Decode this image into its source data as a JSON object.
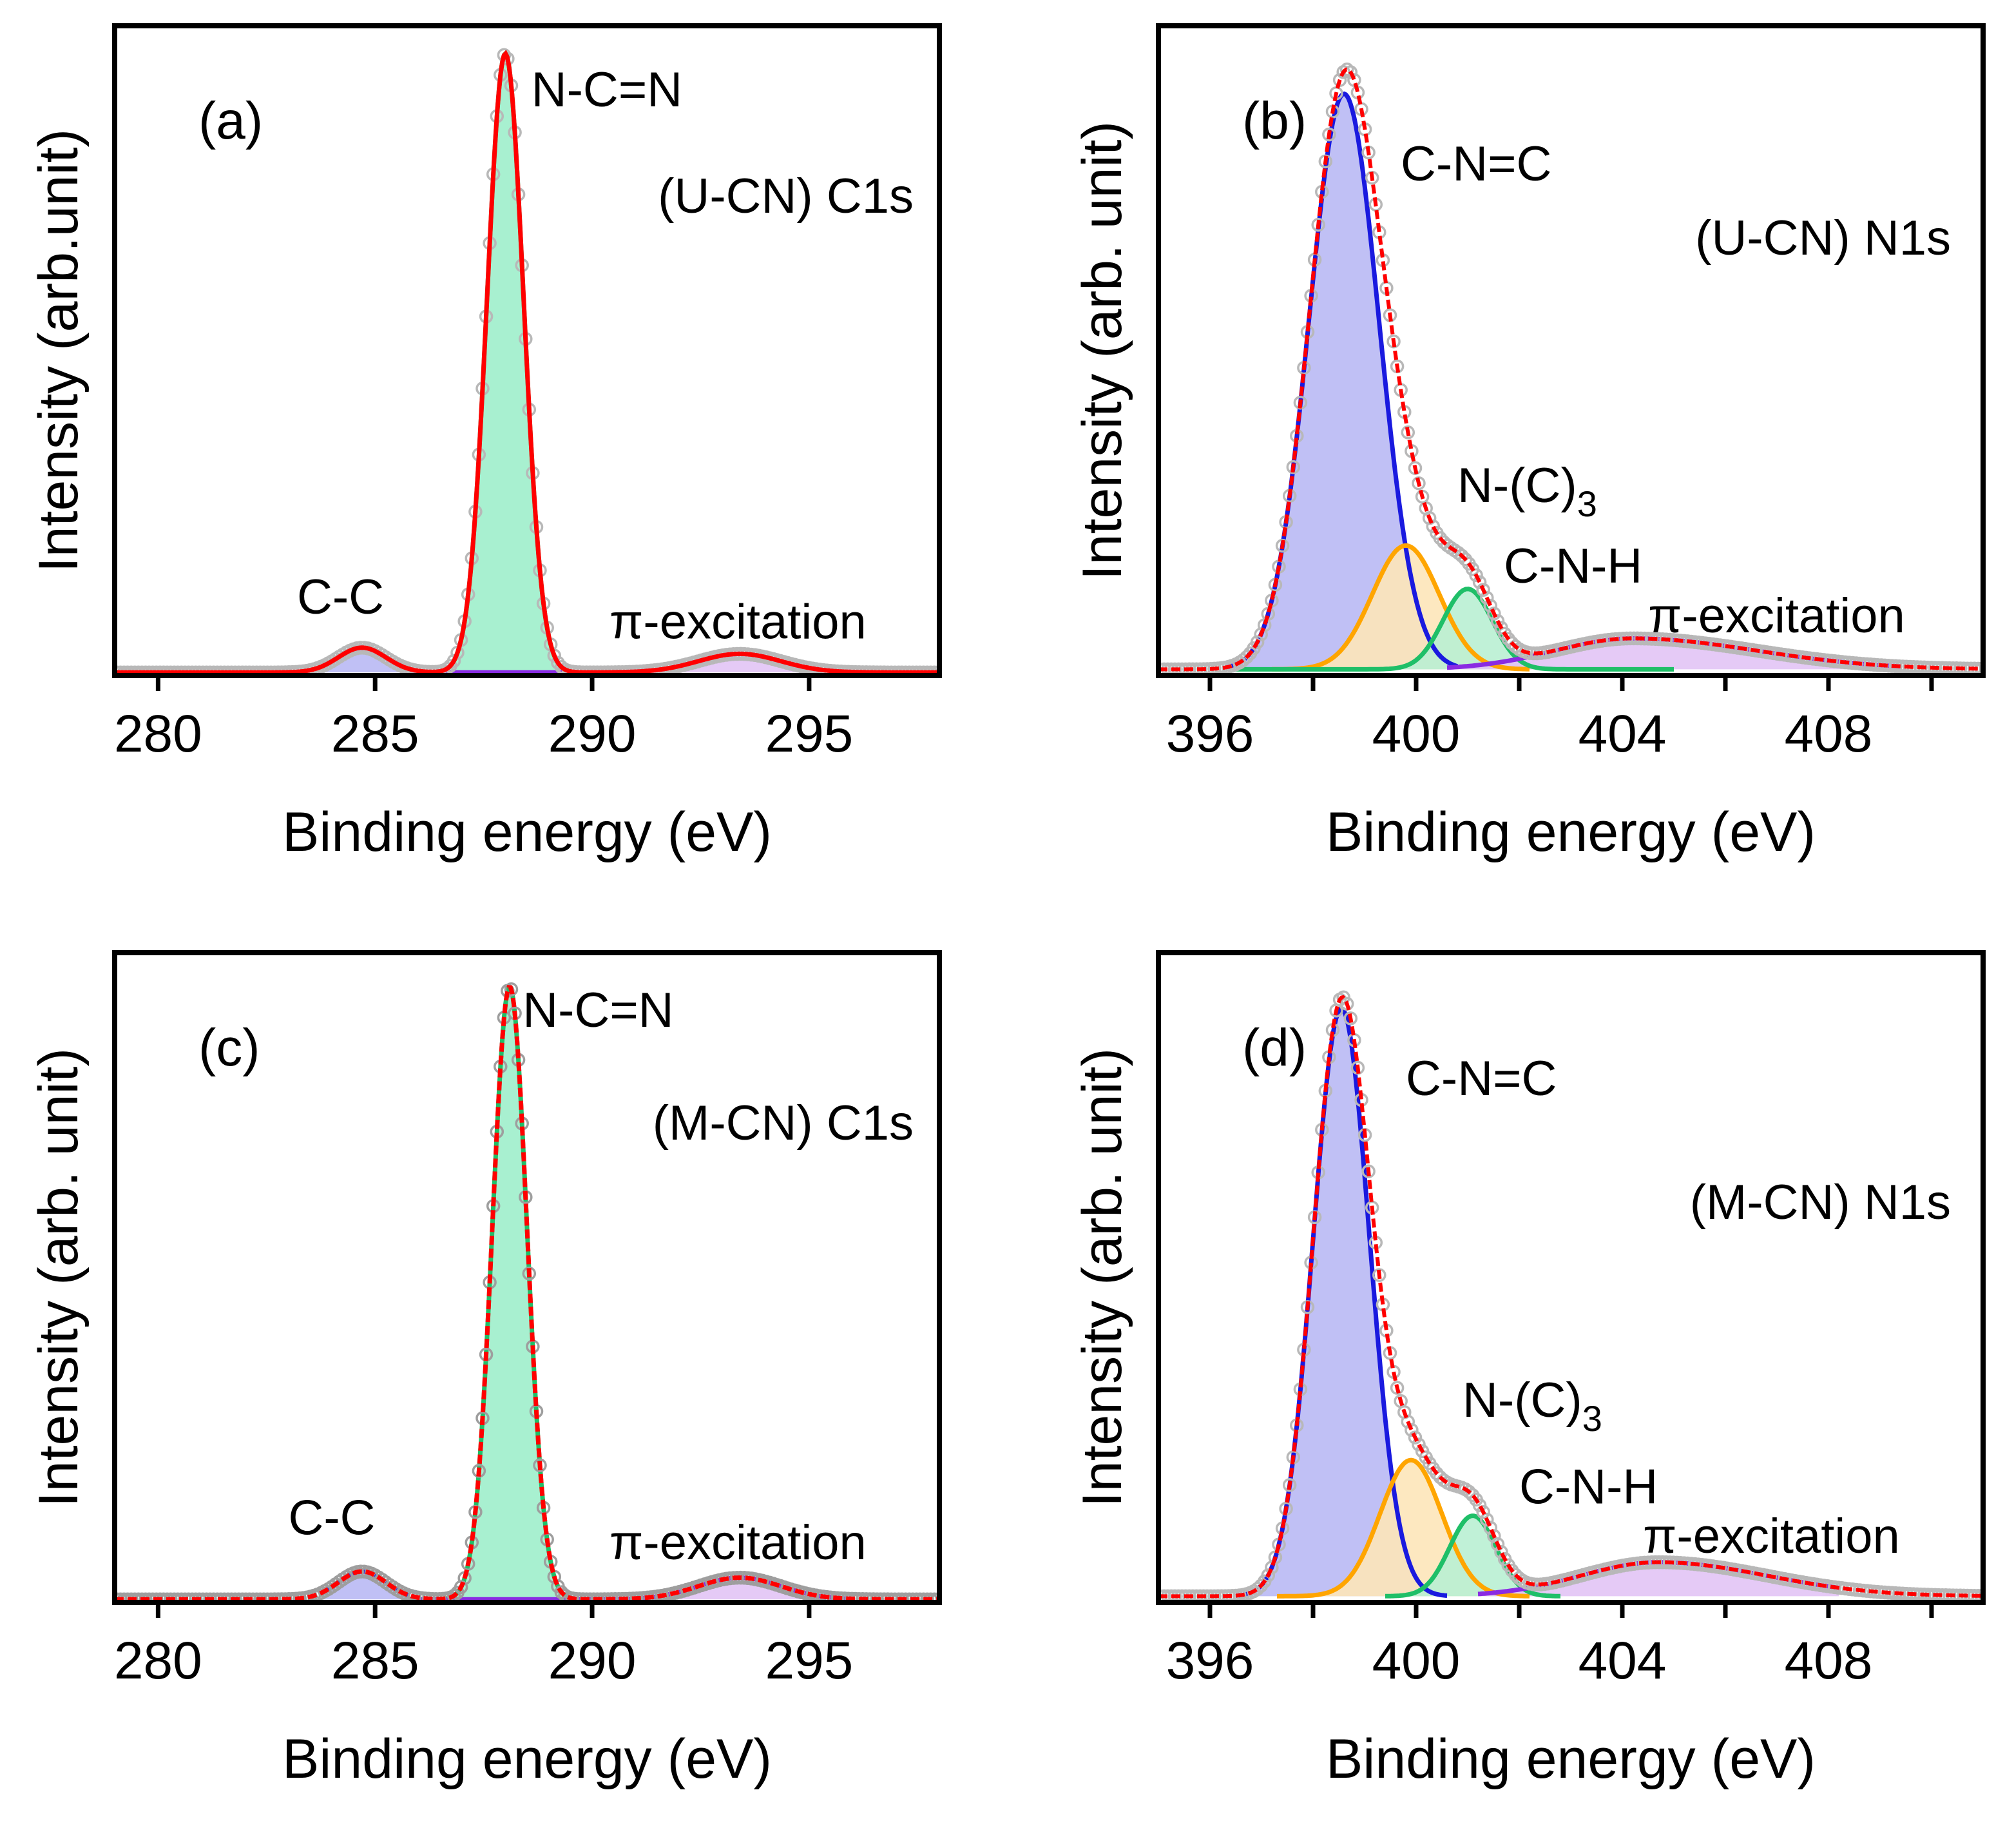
{
  "chart_data": [
    {
      "type": "line",
      "panel_label": "(a)",
      "title": "(U-CN) C1s",
      "xlabel": "Binding energy (eV)",
      "ylabel": "Intensity (arb.unit)",
      "xlim": [
        279,
        298
      ],
      "ylim": [
        0,
        1.05
      ],
      "xticks": [
        280,
        285,
        290,
        295
      ],
      "xtick_labels": [
        "280",
        "285",
        "290",
        "295"
      ],
      "background": 0.005,
      "envelope_color": "#ff0000",
      "points_color": "#b8b8b8",
      "components": [
        {
          "name": "C-C",
          "center": 284.7,
          "height": 0.04,
          "sigma": 0.55,
          "sigma_right": 0.55,
          "color": "#3b3bd6",
          "fill": "#b9b9f4",
          "range": [
            283.8,
            285.8
          ]
        },
        {
          "name": "N-C=N",
          "center": 288.0,
          "height": 1.0,
          "sigma": 0.42,
          "sigma_right": 0.42,
          "color": "#1fbf68",
          "fill": "#9eeecb",
          "range": [
            285.8,
            290.5
          ]
        },
        {
          "name": "π-excitation",
          "center": 293.4,
          "height": 0.03,
          "sigma": 0.95,
          "sigma_right": 0.95,
          "color": "#8a2be2",
          "fill": "#e2c4f5",
          "range": [
            285.8,
            296.0
          ]
        }
      ],
      "annotations": [
        {
          "text": "N-C=N",
          "x": 288.6,
          "y": 0.92
        },
        {
          "text": "C-C",
          "x": 283.2,
          "y": 0.1
        },
        {
          "text": "π-excitation",
          "x": 290.4,
          "y": 0.06
        }
      ]
    },
    {
      "type": "line",
      "panel_label": "(b)",
      "title": "(U-CN) N1s",
      "xlabel": "Binding energy (eV)",
      "ylabel": "Intensity (arb. unit)",
      "xlim": [
        395,
        411
      ],
      "ylim": [
        0,
        1.05
      ],
      "xticks": [
        396,
        400,
        404,
        408
      ],
      "xtick_labels": [
        "396",
        "400",
        "404",
        "408"
      ],
      "minor_xticks": [
        398,
        402,
        406,
        410
      ],
      "background": 0.01,
      "envelope_color": "#ff0000",
      "points_color": "#b8b8b8",
      "components": [
        {
          "name": "C-N=C",
          "center": 398.6,
          "height": 0.93,
          "sigma": 0.68,
          "sigma_right": 0.68,
          "color": "#1a1adf",
          "fill": "#b9b9f4",
          "range": [
            396.3,
            400.8
          ]
        },
        {
          "name": "N-(C)3",
          "center": 399.8,
          "height": 0.2,
          "sigma": 0.65,
          "sigma_right": 0.65,
          "color": "#ffa500",
          "fill": "#fde5b9",
          "range": [
            397.2,
            402.2
          ]
        },
        {
          "name": "C-N-H",
          "center": 401.0,
          "height": 0.13,
          "sigma": 0.48,
          "sigma_right": 0.48,
          "color": "#1fbf68",
          "fill": "#b9efd3",
          "range": [
            396.5,
            405.0
          ]
        },
        {
          "name": "π-excitation",
          "center": 404.2,
          "height": 0.05,
          "sigma": 1.5,
          "sigma_right": 2.4,
          "color": "#8a2be2",
          "fill": "#e2c4f5",
          "range": [
            400.6,
            409.4
          ]
        }
      ],
      "annotations": [
        {
          "text": "C-N=C",
          "x": 399.7,
          "y": 0.8
        },
        {
          "text": "N-(C)",
          "sub": "3",
          "x": 400.8,
          "y": 0.28
        },
        {
          "text": "C-N-H",
          "x": 401.7,
          "y": 0.15
        },
        {
          "text": "π-excitation",
          "x": 404.5,
          "y": 0.07
        }
      ],
      "inner_text_y": 0.68
    },
    {
      "type": "line",
      "panel_label": "(c)",
      "title": "(M-CN) C1s",
      "xlabel": "Binding energy (eV)",
      "ylabel": "Intensity (arb. unit)",
      "xlim": [
        279,
        298
      ],
      "ylim": [
        0,
        1.05
      ],
      "xticks": [
        280,
        285,
        290,
        295
      ],
      "xtick_labels": [
        "280",
        "285",
        "290",
        "295"
      ],
      "background": 0.005,
      "envelope_color": "#ff0000",
      "points_color": "#9e9e9e",
      "components": [
        {
          "name": "C-C",
          "center": 284.7,
          "height": 0.045,
          "sigma": 0.55,
          "sigma_right": 0.55,
          "color": "#3b3bd6",
          "fill": "#b9b9f4",
          "range": [
            283.8,
            285.8
          ]
        },
        {
          "name": "N-C=N",
          "center": 288.1,
          "height": 0.99,
          "sigma": 0.4,
          "sigma_right": 0.4,
          "color": "#1fbf68",
          "fill": "#9eeecb",
          "range": [
            285.8,
            290.5
          ]
        },
        {
          "name": "π-excitation",
          "center": 293.4,
          "height": 0.035,
          "sigma": 0.95,
          "sigma_right": 0.95,
          "color": "#8a2be2",
          "fill": "#e2c4f5",
          "range": [
            286.0,
            296.0
          ]
        }
      ],
      "annotations": [
        {
          "text": "N-C=N",
          "x": 288.4,
          "y": 0.93
        },
        {
          "text": "C-C",
          "x": 283.0,
          "y": 0.11
        },
        {
          "text": "π-excitation",
          "x": 290.4,
          "y": 0.07
        }
      ]
    },
    {
      "type": "line",
      "panel_label": "(d)",
      "title": "(M-CN) N1s",
      "xlabel": "Binding energy (eV)",
      "ylabel": "Intensity (arb. unit)",
      "xlim": [
        395,
        411
      ],
      "ylim": [
        0,
        1.05
      ],
      "xticks": [
        396,
        400,
        404,
        408
      ],
      "xtick_labels": [
        "396",
        "400",
        "404",
        "408"
      ],
      "minor_xticks": [
        398,
        402,
        406,
        410
      ],
      "background": 0.01,
      "envelope_color": "#ff0000",
      "points_color": "#b8b8b8",
      "components": [
        {
          "name": "C-N=C",
          "center": 398.55,
          "height": 0.95,
          "sigma": 0.55,
          "sigma_right": 0.55,
          "color": "#1a1adf",
          "fill": "#b9b9f4",
          "range": [
            396.5,
            400.6
          ]
        },
        {
          "name": "N-(C)3",
          "center": 399.9,
          "height": 0.22,
          "sigma": 0.6,
          "sigma_right": 0.6,
          "color": "#ffa500",
          "fill": "#fde5b9",
          "range": [
            397.3,
            402.2
          ]
        },
        {
          "name": "C-N-H",
          "center": 401.1,
          "height": 0.13,
          "sigma": 0.45,
          "sigma_right": 0.45,
          "color": "#1fbf68",
          "fill": "#b9efd3",
          "range": [
            399.4,
            402.8
          ]
        },
        {
          "name": "π-excitation",
          "center": 404.7,
          "height": 0.055,
          "sigma": 1.5,
          "sigma_right": 2.1,
          "color": "#8a2be2",
          "fill": "#e2c4f5",
          "range": [
            401.2,
            408.2
          ]
        }
      ],
      "annotations": [
        {
          "text": "C-N=C",
          "x": 399.8,
          "y": 0.82
        },
        {
          "text": "N-(C)",
          "sub": "3",
          "x": 400.9,
          "y": 0.3
        },
        {
          "text": "C-N-H",
          "x": 402.0,
          "y": 0.16
        },
        {
          "text": "π-excitation",
          "x": 404.4,
          "y": 0.08
        }
      ],
      "inner_text_y": 0.62
    }
  ]
}
